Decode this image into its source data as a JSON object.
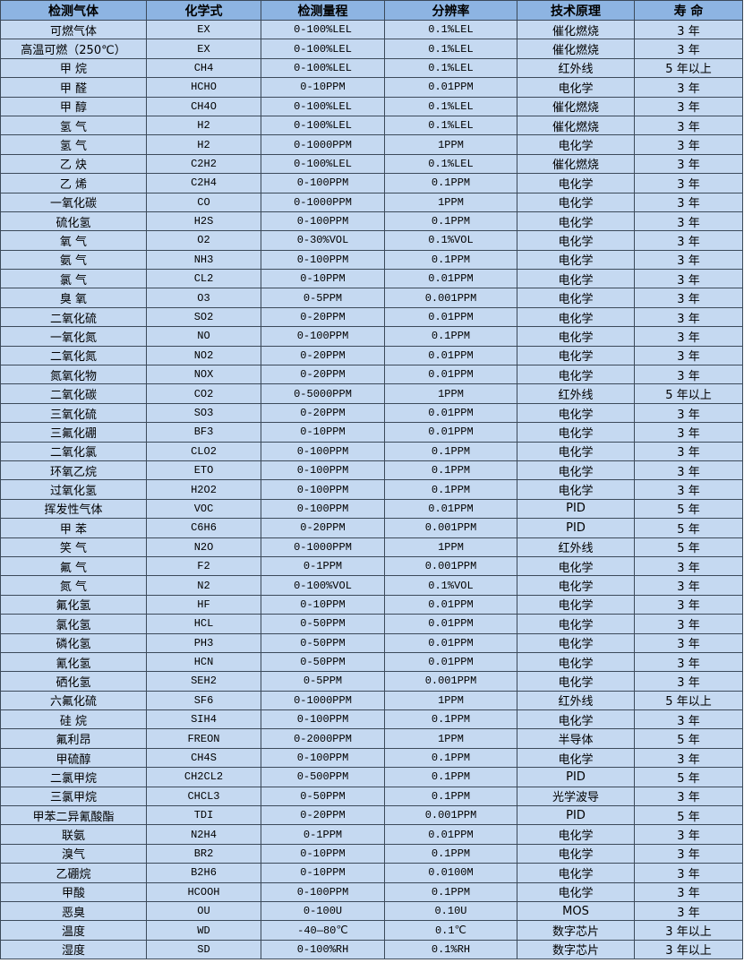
{
  "colors": {
    "header_bg": "#8db4e2",
    "row_bg": "#c5d9f1",
    "border": "#3c4a5a"
  },
  "headers": [
    "检测气体",
    "化学式",
    "检测量程",
    "分辨率",
    "技术原理",
    "寿 命"
  ],
  "rows": [
    [
      "可燃气体",
      "EX",
      "0-100%LEL",
      "0.1%LEL",
      "催化燃烧",
      "3 年"
    ],
    [
      "高温可燃（250℃）",
      "EX",
      "0-100%LEL",
      "0.1%LEL",
      "催化燃烧",
      "3 年"
    ],
    [
      "甲 烷",
      "CH4",
      "0-100%LEL",
      "0.1%LEL",
      "红外线",
      "5 年以上"
    ],
    [
      "甲 醛",
      "HCHO",
      "0-10PPM",
      "0.01PPM",
      "电化学",
      "3 年"
    ],
    [
      "甲 醇",
      "CH4O",
      "0-100%LEL",
      "0.1%LEL",
      "催化燃烧",
      "3 年"
    ],
    [
      "氢 气",
      "H2",
      "0-100%LEL",
      "0.1%LEL",
      "催化燃烧",
      "3 年"
    ],
    [
      "氢 气",
      "H2",
      "0-1000PPM",
      "1PPM",
      "电化学",
      "3 年"
    ],
    [
      "乙 炔",
      "C2H2",
      "0-100%LEL",
      "0.1%LEL",
      "催化燃烧",
      "3 年"
    ],
    [
      "乙 烯",
      "C2H4",
      "0-100PPM",
      "0.1PPM",
      "电化学",
      "3 年"
    ],
    [
      "一氧化碳",
      "CO",
      "0-1000PPM",
      "1PPM",
      "电化学",
      "3 年"
    ],
    [
      "硫化氢",
      "H2S",
      "0-100PPM",
      "0.1PPM",
      "电化学",
      "3 年"
    ],
    [
      "氧 气",
      "O2",
      "0-30%VOL",
      "0.1%VOL",
      "电化学",
      "3 年"
    ],
    [
      "氨 气",
      "NH3",
      "0-100PPM",
      "0.1PPM",
      "电化学",
      "3 年"
    ],
    [
      "氯 气",
      "CL2",
      "0-10PPM",
      "0.01PPM",
      "电化学",
      "3 年"
    ],
    [
      "臭 氧",
      "O3",
      "0-5PPM",
      "0.001PPM",
      "电化学",
      "3 年"
    ],
    [
      "二氧化硫",
      "SO2",
      "0-20PPM",
      "0.01PPM",
      "电化学",
      "3 年"
    ],
    [
      "一氧化氮",
      "NO",
      "0-100PPM",
      "0.1PPM",
      "电化学",
      "3 年"
    ],
    [
      "二氧化氮",
      "NO2",
      "0-20PPM",
      "0.01PPM",
      "电化学",
      "3 年"
    ],
    [
      "氮氧化物",
      "NOX",
      "0-20PPM",
      "0.01PPM",
      "电化学",
      "3 年"
    ],
    [
      "二氧化碳",
      "CO2",
      "0-5000PPM",
      "1PPM",
      "红外线",
      "5 年以上"
    ],
    [
      "三氧化硫",
      "SO3",
      "0-20PPM",
      "0.01PPM",
      "电化学",
      "3 年"
    ],
    [
      "三氟化硼",
      "BF3",
      "0-10PPM",
      "0.01PPM",
      "电化学",
      "3 年"
    ],
    [
      "二氧化氯",
      "CLO2",
      "0-100PPM",
      "0.1PPM",
      "电化学",
      "3 年"
    ],
    [
      "环氧乙烷",
      "ETO",
      "0-100PPM",
      "0.1PPM",
      "电化学",
      "3 年"
    ],
    [
      "过氧化氢",
      "H2O2",
      "0-100PPM",
      "0.1PPM",
      "电化学",
      "3 年"
    ],
    [
      "挥发性气体",
      "VOC",
      "0-100PPM",
      "0.01PPM",
      "PID",
      "5 年"
    ],
    [
      "甲 苯",
      "C6H6",
      "0-20PPM",
      "0.001PPM",
      "PID",
      "5 年"
    ],
    [
      "笑 气",
      "N2O",
      "0-1000PPM",
      "1PPM",
      "红外线",
      "5 年"
    ],
    [
      "氟 气",
      "F2",
      "0-1PPM",
      "0.001PPM",
      "电化学",
      "3 年"
    ],
    [
      "氮 气",
      "N2",
      "0-100%VOL",
      "0.1%VOL",
      "电化学",
      "3 年"
    ],
    [
      "氟化氢",
      "HF",
      "0-10PPM",
      "0.01PPM",
      "电化学",
      "3 年"
    ],
    [
      "氯化氢",
      "HCL",
      "0-50PPM",
      "0.01PPM",
      "电化学",
      "3 年"
    ],
    [
      "磷化氢",
      "PH3",
      "0-50PPM",
      "0.01PPM",
      "电化学",
      "3 年"
    ],
    [
      "氰化氢",
      "HCN",
      "0-50PPM",
      "0.01PPM",
      "电化学",
      "3 年"
    ],
    [
      "硒化氢",
      "SEH2",
      "0-5PPM",
      "0.001PPM",
      "电化学",
      "3 年"
    ],
    [
      "六氟化硫",
      "SF6",
      "0-1000PPM",
      "1PPM",
      "红外线",
      "5 年以上"
    ],
    [
      "硅 烷",
      "SIH4",
      "0-100PPM",
      "0.1PPM",
      "电化学",
      "3 年"
    ],
    [
      "氟利昂",
      "FREON",
      "0-2000PPM",
      "1PPM",
      "半导体",
      "5 年"
    ],
    [
      "甲硫醇",
      "CH4S",
      "0-100PPM",
      "0.1PPM",
      "电化学",
      "3 年"
    ],
    [
      "二氯甲烷",
      "CH2CL2",
      "0-500PPM",
      "0.1PPM",
      "PID",
      "5 年"
    ],
    [
      "三氯甲烷",
      "CHCL3",
      "0-50PPM",
      "0.1PPM",
      "光学波导",
      "3 年"
    ],
    [
      "甲苯二异氰酸酯",
      "TDI",
      "0-20PPM",
      "0.001PPM",
      "PID",
      "5 年"
    ],
    [
      "联氨",
      "N2H4",
      "0-1PPM",
      "0.01PPM",
      "电化学",
      "3 年"
    ],
    [
      "溴气",
      "BR2",
      "0-10PPM",
      "0.1PPM",
      "电化学",
      "3 年"
    ],
    [
      "乙硼烷",
      "B2H6",
      "0-10PPM",
      "0.0100M",
      "电化学",
      "3 年"
    ],
    [
      "甲酸",
      "HCOOH",
      "0-100PPM",
      "0.1PPM",
      "电化学",
      "3 年"
    ],
    [
      "恶臭",
      "OU",
      "0-100U",
      "0.10U",
      "MOS",
      "3 年"
    ],
    [
      "温度",
      "WD",
      "-40—80℃",
      "0.1℃",
      "数字芯片",
      "3 年以上"
    ],
    [
      "湿度",
      "SD",
      "0-100%RH",
      "0.1%RH",
      "数字芯片",
      "3 年以上"
    ]
  ]
}
